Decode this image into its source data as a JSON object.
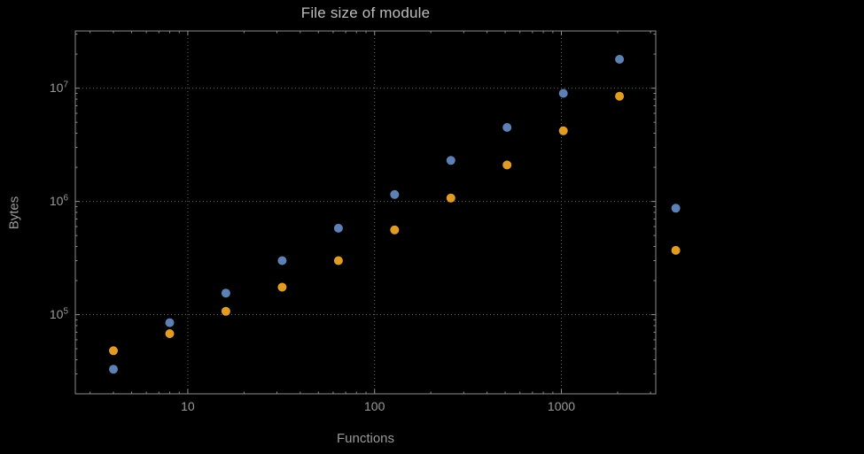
{
  "chart_data": {
    "type": "scatter",
    "title": "File size of module",
    "xlabel": "Functions",
    "ylabel": "Bytes",
    "xscale": "log",
    "yscale": "log",
    "xlim": [
      2.5,
      3200
    ],
    "ylim": [
      20000,
      32000000
    ],
    "grid": "dotted gridlines at decades, dark background, framed plot with mirrored ticks",
    "legend": "none",
    "colors": {
      "background": "#000000",
      "frame": "#8c8c8c",
      "gridline": "#666666",
      "text": "#9a9a9a",
      "title_text": "#bdbdbd",
      "series_blue": "#5E81B5",
      "series_orange": "#E19C24"
    },
    "xticks": [
      {
        "v": 10,
        "label": "10"
      },
      {
        "v": 100,
        "label": "100"
      },
      {
        "v": 1000,
        "label": "1000"
      }
    ],
    "yticks": [
      {
        "v": 100000,
        "label": "10^5"
      },
      {
        "v": 1000000,
        "label": "10^6"
      },
      {
        "v": 10000000,
        "label": "10^7"
      }
    ],
    "xticks_minor": [
      3,
      4,
      5,
      6,
      7,
      8,
      9,
      20,
      30,
      40,
      50,
      60,
      70,
      80,
      90,
      200,
      300,
      400,
      500,
      600,
      700,
      800,
      900,
      2000,
      3000
    ],
    "yticks_minor": [
      30000,
      40000,
      50000,
      60000,
      70000,
      80000,
      90000,
      200000,
      300000,
      400000,
      500000,
      600000,
      700000,
      800000,
      900000,
      2000000,
      3000000,
      4000000,
      5000000,
      6000000,
      7000000,
      8000000,
      9000000,
      20000000,
      30000000
    ],
    "series": [
      {
        "name": "series-blue",
        "color": "#5E81B5",
        "x": [
          4,
          8,
          16,
          32,
          64,
          128,
          256,
          512,
          1024,
          2048,
          4096
        ],
        "y": [
          33000,
          85000,
          155000,
          300000,
          580000,
          1150000,
          2300000,
          4500000,
          9000000,
          18000000,
          870000
        ]
      },
      {
        "name": "series-orange",
        "color": "#E19C24",
        "x": [
          4,
          8,
          16,
          32,
          64,
          128,
          256,
          512,
          1024,
          2048,
          4096
        ],
        "y": [
          48000,
          68000,
          107000,
          175000,
          300000,
          560000,
          1070000,
          2100000,
          4200000,
          8500000,
          370000
        ]
      }
    ]
  }
}
